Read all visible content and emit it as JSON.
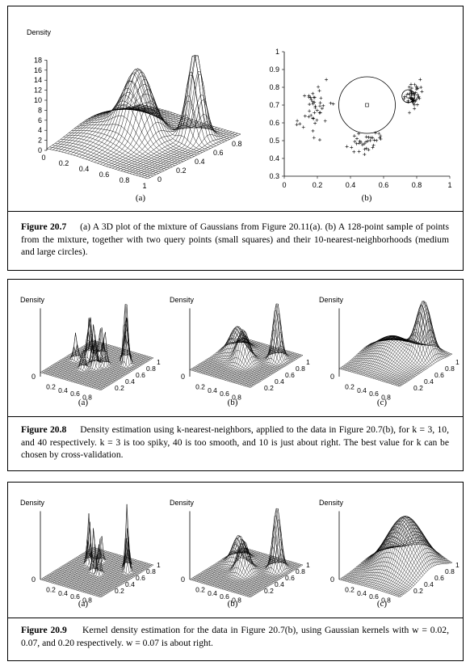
{
  "figures": [
    {
      "number": "Figure 20.7",
      "caption": "(a) A 3D plot of the mixture of Gaussians from Figure 20.11(a). (b) A 128-point sample of points from the mixture, together with two query points (small squares) and their 10-nearest-neighborhoods (medium and large circles).",
      "panels": [
        {
          "label": "(a)",
          "zlabel": "Density",
          "z_ticks": [
            "18",
            "16",
            "14",
            "12",
            "10",
            "8",
            "6",
            "4",
            "2",
            "0"
          ],
          "x_ticks": [
            "0",
            "0.2",
            "0.4",
            "0.6",
            "0.8",
            "1"
          ],
          "y_ticks": [
            "0",
            "0.2",
            "0.4",
            "0.6",
            "0.8"
          ]
        },
        {
          "label": "(b)",
          "x_ticks": [
            "0",
            "0.2",
            "0.4",
            "0.6",
            "0.8",
            "1"
          ],
          "y_ticks": [
            "1",
            "0.9",
            "0.8",
            "0.7",
            "0.6",
            "0.5",
            "0.4",
            "0.3"
          ]
        }
      ]
    },
    {
      "number": "Figure 20.8",
      "caption": "Density estimation using k-nearest-neighbors, applied to the data in Figure 20.7(b), for k = 3, 10, and 40 respectively. k = 3 is too spiky, 40 is too smooth, and 10 is just about right. The best value for k can be chosen by cross-validation.",
      "panels": [
        {
          "label": "(a)",
          "zlabel": "Density"
        },
        {
          "label": "(b)",
          "zlabel": "Density"
        },
        {
          "label": "(c)",
          "zlabel": "Density"
        }
      ]
    },
    {
      "number": "Figure 20.9",
      "caption": "Kernel density estimation for the data in Figure 20.7(b), using Gaussian kernels with w = 0.02, 0.07, and 0.20 respectively. w = 0.07 is about right.",
      "panels": [
        {
          "label": "(a)",
          "zlabel": "Density"
        },
        {
          "label": "(b)",
          "zlabel": "Density"
        },
        {
          "label": "(c)",
          "zlabel": "Density"
        }
      ]
    }
  ],
  "small_axis_ticks": {
    "x": [
      "0",
      "0.2",
      "0.4",
      "0.6",
      "0.8",
      "1"
    ],
    "y": [
      "0",
      "0.2",
      "0.4",
      "0.6",
      "0.8",
      "1"
    ],
    "zero": "0"
  }
}
